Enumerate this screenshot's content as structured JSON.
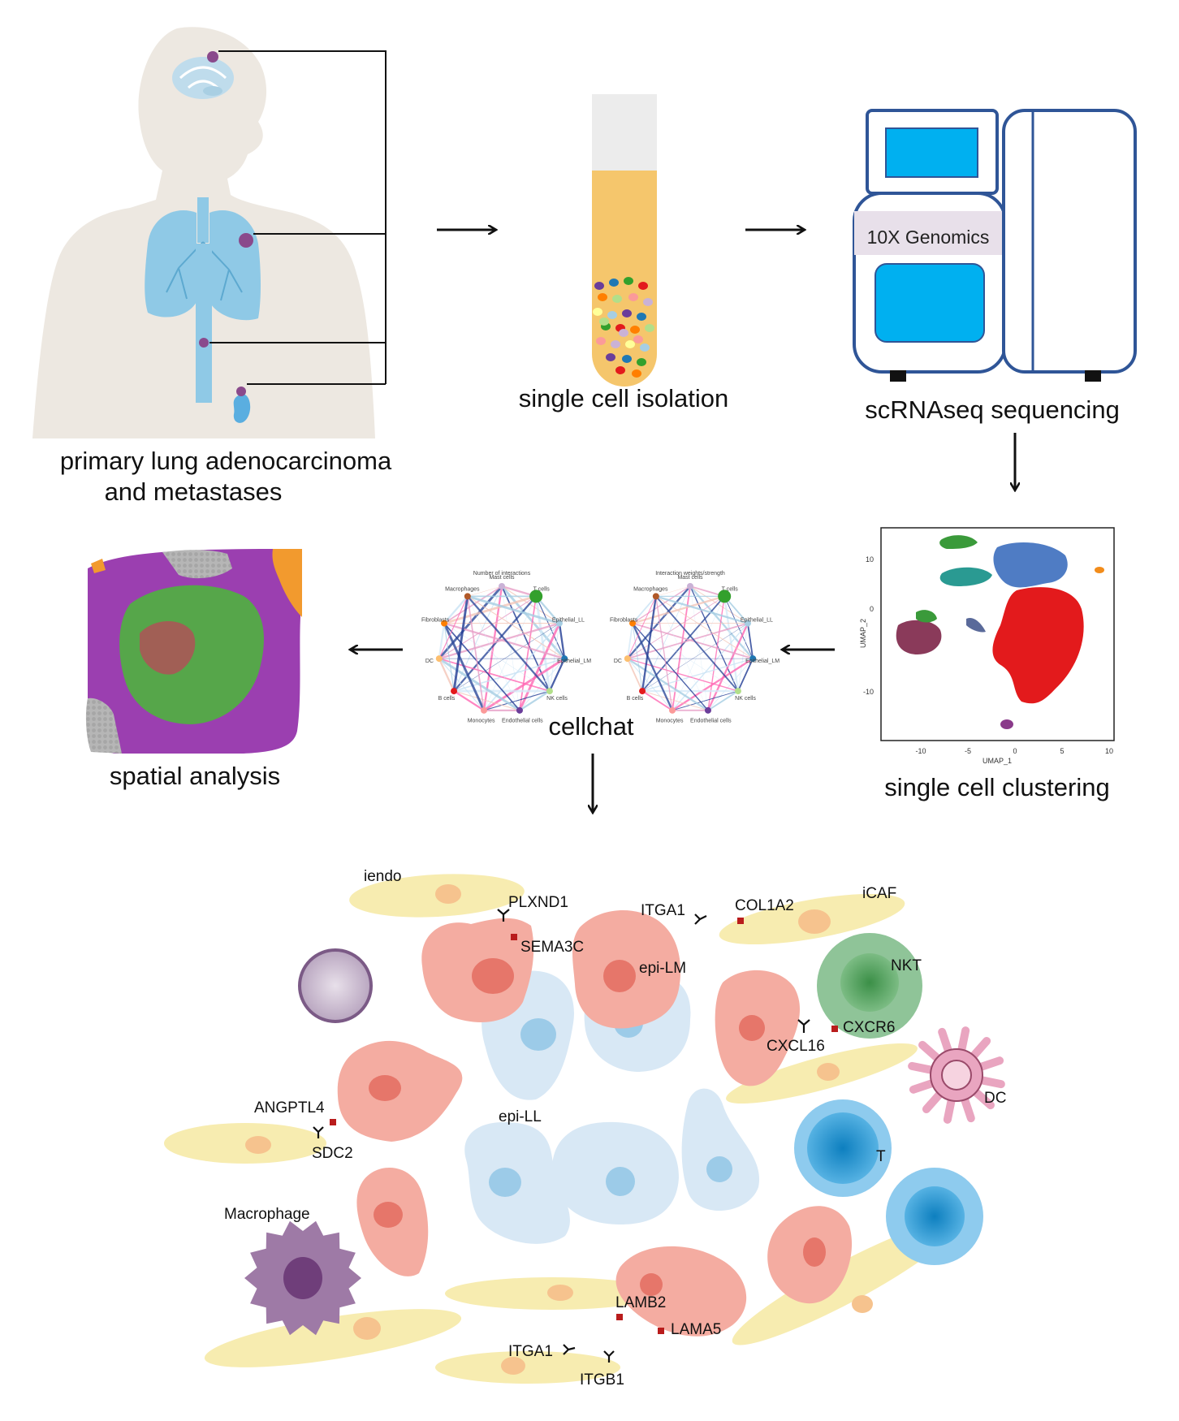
{
  "captions": {
    "primary_line1": "primary lung adenocarcinoma",
    "primary_line2": "and metastases",
    "isolation": "single cell isolation",
    "sequencing": "scRNAseq sequencing",
    "clustering": "single cell clustering",
    "cellchat": "cellchat",
    "spatial": "spatial analysis"
  },
  "sequencer": {
    "brand_label": "10X Genomics"
  },
  "umap": {
    "xlabel": "UMAP_1",
    "ylabel": "UMAP_2",
    "xticks": [
      "-10",
      "-5",
      "0",
      "5",
      "10"
    ],
    "yticks": [
      "10",
      "0",
      "-10"
    ]
  },
  "cellchat": {
    "left_title": "Number of interactions",
    "right_title": "Interaction weights/strength",
    "nodes": [
      "Mast cells",
      "T cells",
      "Epithelial_LL",
      "Epithelial_LM",
      "NK cells",
      "Endothelial cells",
      "Monocytes",
      "B cells",
      "DC",
      "Fibroblasts",
      "Macrophages"
    ]
  },
  "tme": {
    "cells": {
      "iendo": "iendo",
      "icaf": "iCAF",
      "epi_lm": "epi-LM",
      "epi_ll": "epi-LL",
      "nkt": "NKT",
      "dc": "DC",
      "t": "T",
      "macrophage": "Macrophage"
    },
    "molecules": {
      "plxnd1": "PLXND1",
      "sema3c": "SEMA3C",
      "itga1_top": "ITGA1",
      "col1a2": "COL1A2",
      "cxcr6": "CXCR6",
      "cxcl16": "CXCL16",
      "angptl4": "ANGPTL4",
      "sdc2": "SDC2",
      "lamb2": "LAMB2",
      "lama5": "LAMA5",
      "itga1_bottom": "ITGA1",
      "itgb1": "ITGB1"
    }
  },
  "colors": {
    "body_silhouette": "#ede8e1",
    "organ_blue": "#8fc9e6",
    "tumor_purple": "#8a4a8c",
    "tube_fill": "#f5c66c",
    "sequencer_outline": "#2f5597",
    "sequencer_screen": "#00b0f0",
    "umap_red": "#e31a1c",
    "umap_blue": "#4f7cc4",
    "umap_teal": "#2a9a92",
    "umap_maroon": "#8a3a5a",
    "umap_green": "#3a9a3a",
    "umap_orange": "#f28c1b",
    "epi_lm_fill": "#f4aca1",
    "epi_ll_fill": "#d8e8f5",
    "fibro_fill": "#f7ecb0",
    "nkt_fill": "#5aa264",
    "t_fill": "#4aa6da",
    "dc_fill": "#e9a5c0",
    "macrophage_fill": "#9e7aa6",
    "ligand_red": "#b91c1c"
  }
}
